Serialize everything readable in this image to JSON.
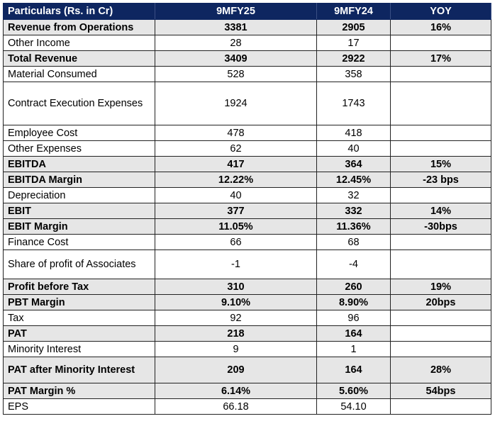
{
  "table": {
    "headers": [
      "Particulars (Rs. in Cr)",
      "9MFY25",
      "9MFY24",
      "YOY"
    ],
    "rows": [
      {
        "label": "Revenue from Operations",
        "fy25": "3381",
        "fy24": "2905",
        "yoy": "16%",
        "bold": true
      },
      {
        "label": "Other Income",
        "fy25": "28",
        "fy24": "17",
        "yoy": "",
        "bold": false
      },
      {
        "label": "Total Revenue",
        "fy25": "3409",
        "fy24": "2922",
        "yoy": "17%",
        "bold": true
      },
      {
        "label": "Material Consumed",
        "fy25": "528",
        "fy24": "358",
        "yoy": "",
        "bold": false
      },
      {
        "label": "Contract Execution Expenses",
        "fy25": "1924",
        "fy24": "1743",
        "yoy": "",
        "bold": false
      },
      {
        "label": "Employee Cost",
        "fy25": "478",
        "fy24": "418",
        "yoy": "",
        "bold": false
      },
      {
        "label": "Other Expenses",
        "fy25": "62",
        "fy24": "40",
        "yoy": "",
        "bold": false
      },
      {
        "label": "EBITDA",
        "fy25": "417",
        "fy24": "364",
        "yoy": "15%",
        "bold": true
      },
      {
        "label": "EBITDA Margin",
        "fy25": "12.22%",
        "fy24": "12.45%",
        "yoy": "-23 bps",
        "bold": true
      },
      {
        "label": "Depreciation",
        "fy25": "40",
        "fy24": "32",
        "yoy": "",
        "bold": false
      },
      {
        "label": "EBIT",
        "fy25": "377",
        "fy24": "332",
        "yoy": "14%",
        "bold": true
      },
      {
        "label": "EBIT Margin",
        "fy25": "11.05%",
        "fy24": "11.36%",
        "yoy": "-30bps",
        "bold": true
      },
      {
        "label": "Finance Cost",
        "fy25": "66",
        "fy24": "68",
        "yoy": "",
        "bold": false
      },
      {
        "label": "Share of profit of Associates",
        "fy25": "-1",
        "fy24": "-4",
        "yoy": "",
        "bold": false
      },
      {
        "label": "Profit before Tax",
        "fy25": "310",
        "fy24": "260",
        "yoy": "19%",
        "bold": true
      },
      {
        "label": "PBT Margin",
        "fy25": "9.10%",
        "fy24": "8.90%",
        "yoy": "20bps",
        "bold": true
      },
      {
        "label": "Tax",
        "fy25": "92",
        "fy24": "96",
        "yoy": "",
        "bold": false
      },
      {
        "label": "PAT",
        "fy25": "218",
        "fy24": "164",
        "yoy": "",
        "bold": true
      },
      {
        "label": "Minority Interest",
        "fy25": "9",
        "fy24": "1",
        "yoy": "",
        "bold": false
      },
      {
        "label": "PAT after Minority Interest",
        "fy25": "209",
        "fy24": "164",
        "yoy": "28%",
        "bold": true
      },
      {
        "label": "PAT Margin %",
        "fy25": "6.14%",
        "fy24": "5.60%",
        "yoy": "54bps",
        "bold": true
      },
      {
        "label": "EPS",
        "fy25": "66.18",
        "fy24": "54.10",
        "yoy": "",
        "bold": false
      }
    ]
  }
}
